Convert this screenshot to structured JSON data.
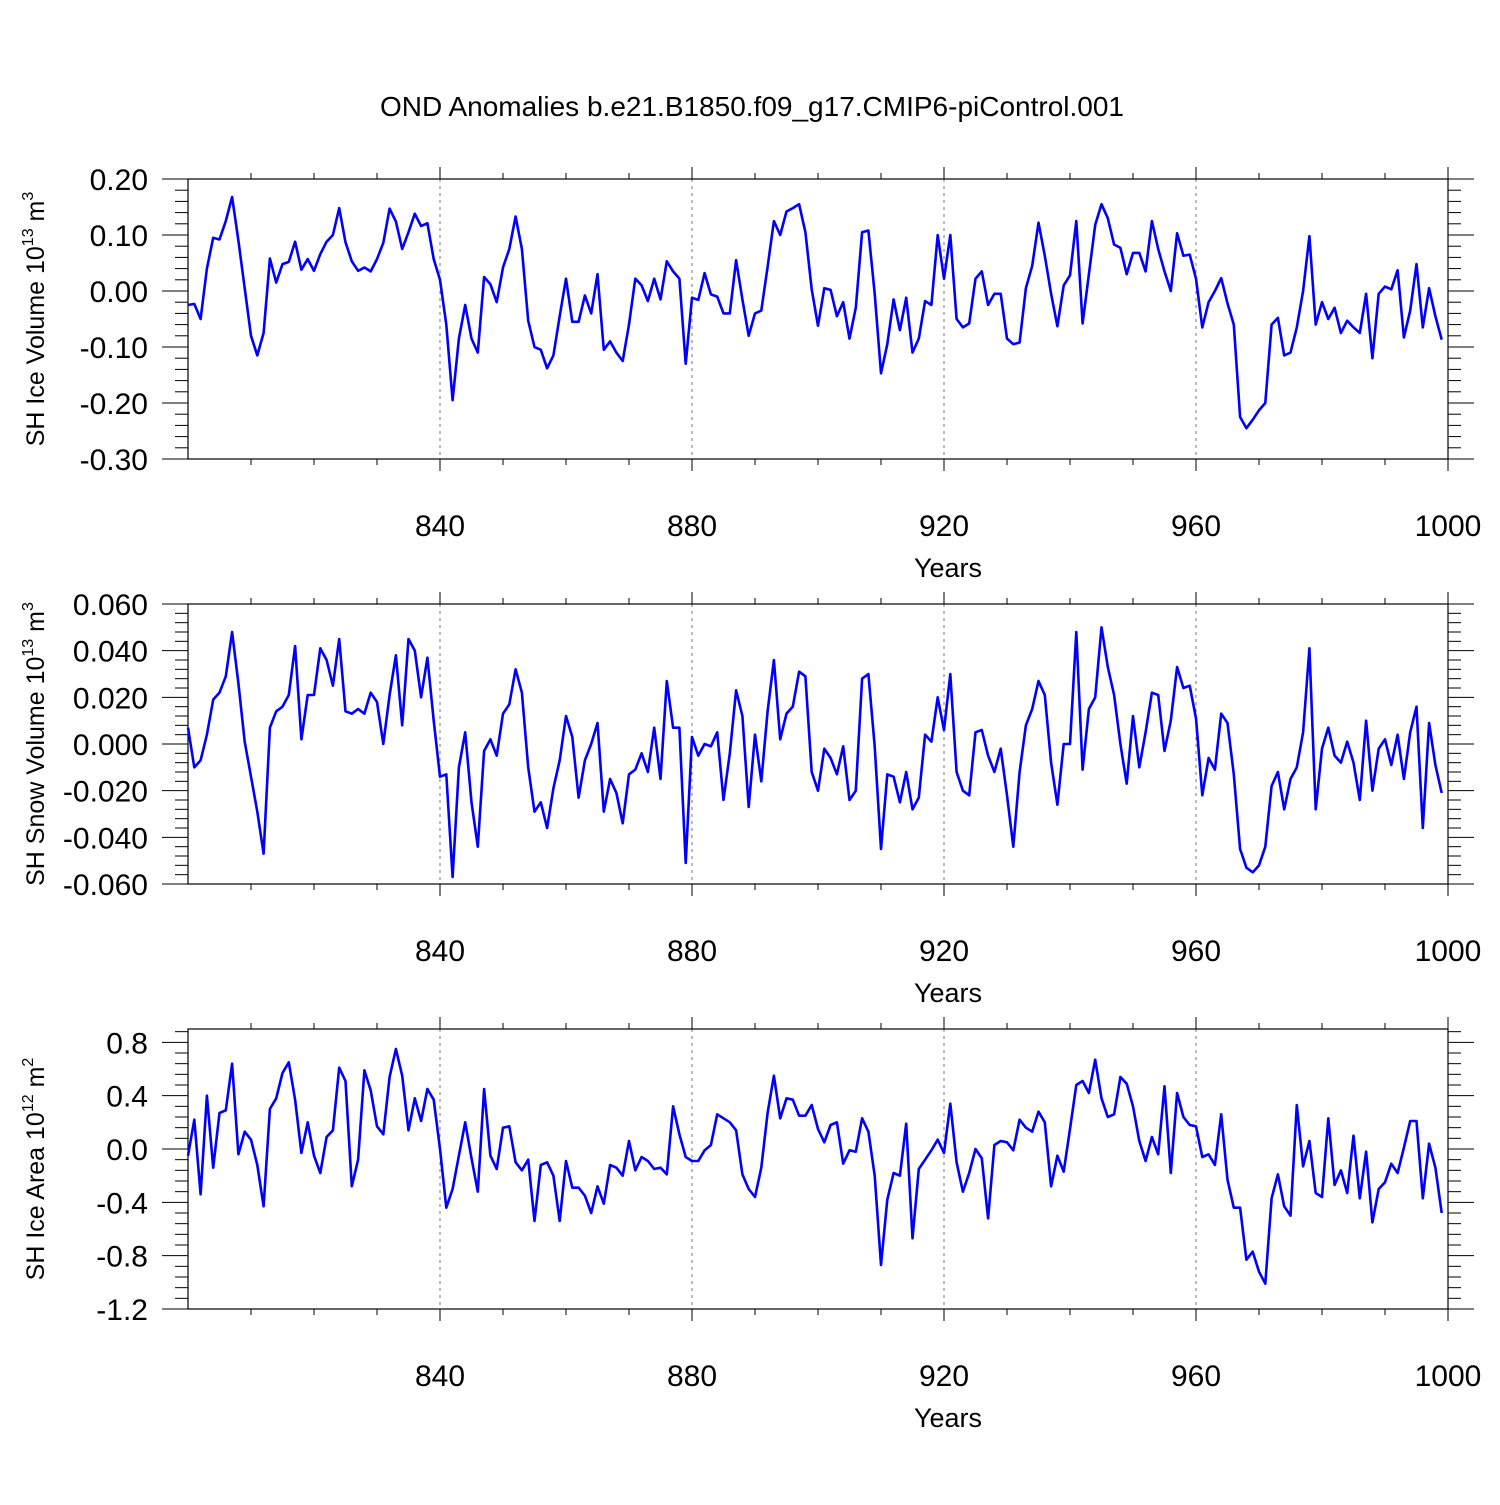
{
  "title": "OND Anomalies b.e21.B1850.f09_g17.CMIP6-piControl.001",
  "series_color": "#0000ff",
  "chart_data": [
    {
      "type": "line",
      "ylabel_main": "SH Ice Volume 10",
      "ylabel_exp": "13",
      "ylabel_unit": " m",
      "ylabel_unit_exp": "3",
      "xlabel": "Years",
      "xlim": [
        800,
        1000
      ],
      "ylim": [
        -0.3,
        0.2
      ],
      "yticks": [
        -0.3,
        -0.2,
        -0.1,
        0.0,
        0.1,
        0.2
      ],
      "ytick_labels": [
        "-0.30",
        "-0.20",
        "-0.10",
        "0.00",
        "0.10",
        "0.20"
      ],
      "xticks": [
        840,
        880,
        920,
        960,
        1000
      ],
      "xtick_labels": [
        "840",
        "880",
        "920",
        "960",
        "1000"
      ],
      "grid": "dashed vertical lines at 840, 880, 920, 960",
      "x_start": 800,
      "values": [
        -0.025,
        -0.023,
        -0.05,
        0.04,
        0.095,
        0.092,
        0.125,
        0.168,
        0.09,
        0.005,
        -0.08,
        -0.115,
        -0.075,
        0.058,
        0.015,
        0.048,
        0.052,
        0.088,
        0.038,
        0.057,
        0.036,
        0.066,
        0.088,
        0.1,
        0.148,
        0.087,
        0.053,
        0.036,
        0.042,
        0.035,
        0.057,
        0.086,
        0.147,
        0.124,
        0.075,
        0.105,
        0.138,
        0.116,
        0.121,
        0.057,
        0.02,
        -0.06,
        -0.195,
        -0.085,
        -0.025,
        -0.085,
        -0.11,
        0.025,
        0.012,
        -0.02,
        0.042,
        0.075,
        0.133,
        0.075,
        -0.053,
        -0.1,
        -0.105,
        -0.138,
        -0.115,
        -0.045,
        0.022,
        -0.055,
        -0.055,
        -0.008,
        -0.04,
        0.03,
        -0.105,
        -0.09,
        -0.11,
        -0.125,
        -0.06,
        0.022,
        0.01,
        -0.018,
        0.022,
        -0.015,
        0.053,
        0.035,
        0.022,
        -0.13,
        -0.012,
        -0.016,
        0.032,
        -0.006,
        -0.01,
        -0.04,
        -0.04,
        0.055,
        -0.015,
        -0.08,
        -0.04,
        -0.035,
        0.043,
        0.125,
        0.1,
        0.142,
        0.148,
        0.155,
        0.105,
        0.003,
        -0.062,
        0.005,
        0.002,
        -0.045,
        -0.02,
        -0.085,
        -0.03,
        0.105,
        0.108,
        -0.005,
        -0.147,
        -0.095,
        -0.015,
        -0.07,
        -0.012,
        -0.11,
        -0.085,
        -0.018,
        -0.025,
        0.1,
        0.022,
        0.1,
        -0.05,
        -0.065,
        -0.058,
        0.022,
        0.035,
        -0.025,
        -0.005,
        -0.005,
        -0.085,
        -0.095,
        -0.092,
        0.005,
        0.045,
        0.122,
        0.063,
        -0.005,
        -0.063,
        0.01,
        0.028,
        0.125,
        -0.058,
        0.03,
        0.118,
        0.155,
        0.13,
        0.083,
        0.077,
        0.03,
        0.068,
        0.068,
        0.035,
        0.125,
        0.075,
        0.035,
        0.0,
        0.103,
        0.063,
        0.065,
        0.022,
        -0.065,
        -0.02,
        0.0,
        0.023,
        -0.022,
        -0.06,
        -0.225,
        -0.245,
        -0.23,
        -0.213,
        -0.2,
        -0.06,
        -0.048,
        -0.115,
        -0.11,
        -0.065,
        0.0,
        0.098,
        -0.06,
        -0.02,
        -0.05,
        -0.03,
        -0.075,
        -0.053,
        -0.065,
        -0.075,
        -0.005,
        -0.12,
        -0.005,
        0.008,
        0.003,
        0.037,
        -0.083,
        -0.035,
        0.048,
        -0.065,
        0.005,
        -0.045,
        -0.087
      ]
    },
    {
      "type": "line",
      "ylabel_main": "SH Snow Volume 10",
      "ylabel_exp": "13",
      "ylabel_unit": " m",
      "ylabel_unit_exp": "3",
      "xlabel": "Years",
      "xlim": [
        800,
        1000
      ],
      "ylim": [
        -0.06,
        0.06
      ],
      "yticks": [
        -0.06,
        -0.04,
        -0.02,
        0.0,
        0.02,
        0.04,
        0.06
      ],
      "ytick_labels": [
        "-0.060",
        "-0.040",
        "-0.020",
        "0.000",
        "0.020",
        "0.040",
        "0.060"
      ],
      "xticks": [
        840,
        880,
        920,
        960,
        1000
      ],
      "xtick_labels": [
        "840",
        "880",
        "920",
        "960",
        "1000"
      ],
      "grid": "dashed vertical lines at 840, 880, 920, 960",
      "x_start": 800,
      "values": [
        0.007,
        -0.01,
        -0.007,
        0.004,
        0.019,
        0.022,
        0.029,
        0.048,
        0.026,
        0.001,
        -0.014,
        -0.029,
        -0.047,
        0.007,
        0.014,
        0.016,
        0.021,
        0.042,
        0.002,
        0.021,
        0.021,
        0.041,
        0.036,
        0.025,
        0.045,
        0.014,
        0.013,
        0.015,
        0.013,
        0.022,
        0.018,
        0.0,
        0.021,
        0.038,
        0.008,
        0.045,
        0.04,
        0.02,
        0.037,
        0.01,
        -0.014,
        -0.013,
        -0.057,
        -0.01,
        0.005,
        -0.025,
        -0.044,
        -0.003,
        0.002,
        -0.005,
        0.013,
        0.017,
        0.032,
        0.022,
        -0.01,
        -0.029,
        -0.025,
        -0.036,
        -0.019,
        -0.007,
        0.012,
        0.003,
        -0.023,
        -0.007,
        0.0,
        0.009,
        -0.029,
        -0.015,
        -0.021,
        -0.034,
        -0.013,
        -0.011,
        -0.004,
        -0.012,
        0.007,
        -0.015,
        0.027,
        0.007,
        0.007,
        -0.051,
        0.003,
        -0.005,
        0.0,
        -0.001,
        0.005,
        -0.024,
        -0.004,
        0.023,
        0.012,
        -0.027,
        0.004,
        -0.016,
        0.014,
        0.036,
        0.002,
        0.013,
        0.016,
        0.031,
        0.029,
        -0.012,
        -0.02,
        -0.002,
        -0.006,
        -0.013,
        -0.001,
        -0.024,
        -0.02,
        0.028,
        0.03,
        -0.001,
        -0.045,
        -0.013,
        -0.014,
        -0.025,
        -0.012,
        -0.028,
        -0.023,
        0.004,
        0.001,
        0.02,
        0.006,
        0.03,
        -0.012,
        -0.02,
        -0.022,
        0.005,
        0.006,
        -0.005,
        -0.012,
        -0.002,
        -0.022,
        -0.044,
        -0.012,
        0.008,
        0.015,
        0.027,
        0.021,
        -0.008,
        -0.026,
        0.0,
        0.0,
        0.048,
        -0.011,
        0.015,
        0.02,
        0.05,
        0.033,
        0.021,
        0.0,
        -0.017,
        0.012,
        -0.01,
        0.005,
        0.022,
        0.021,
        -0.003,
        0.01,
        0.033,
        0.024,
        0.025,
        0.011,
        -0.022,
        -0.006,
        -0.011,
        0.013,
        0.009,
        -0.013,
        -0.045,
        -0.053,
        -0.055,
        -0.052,
        -0.044,
        -0.018,
        -0.012,
        -0.028,
        -0.015,
        -0.01,
        0.005,
        0.041,
        -0.028,
        -0.002,
        0.007,
        -0.005,
        -0.008,
        0.001,
        -0.008,
        -0.024,
        0.01,
        -0.02,
        -0.002,
        0.002,
        -0.009,
        0.004,
        -0.015,
        0.005,
        0.016,
        -0.036,
        0.009,
        -0.009,
        -0.021
      ]
    },
    {
      "type": "line",
      "ylabel_main": "SH Ice Area 10",
      "ylabel_exp": "12",
      "ylabel_unit": " m",
      "ylabel_unit_exp": "2",
      "xlabel": "Years",
      "xlim": [
        800,
        1000
      ],
      "ylim": [
        -1.2,
        0.9
      ],
      "yticks": [
        -1.2,
        -0.8,
        -0.4,
        0.0,
        0.4,
        0.8
      ],
      "ytick_labels": [
        "-1.2",
        "-0.8",
        "-0.4",
        "0.0",
        "0.4",
        "0.8"
      ],
      "xticks": [
        840,
        880,
        920,
        960,
        1000
      ],
      "xtick_labels": [
        "840",
        "880",
        "920",
        "960",
        "1000"
      ],
      "grid": "dashed vertical lines at 840, 880, 920, 960",
      "x_start": 800,
      "values": [
        -0.05,
        0.22,
        -0.34,
        0.4,
        -0.14,
        0.27,
        0.29,
        0.64,
        -0.04,
        0.13,
        0.07,
        -0.12,
        -0.43,
        0.3,
        0.38,
        0.57,
        0.65,
        0.37,
        -0.03,
        0.2,
        -0.05,
        -0.18,
        0.09,
        0.14,
        0.61,
        0.51,
        -0.28,
        -0.08,
        0.59,
        0.44,
        0.17,
        0.11,
        0.54,
        0.75,
        0.55,
        0.14,
        0.38,
        0.21,
        0.45,
        0.37,
        0.0,
        -0.44,
        -0.3,
        -0.05,
        0.2,
        -0.07,
        -0.32,
        0.45,
        -0.05,
        -0.15,
        0.16,
        0.17,
        -0.1,
        -0.16,
        -0.08,
        -0.54,
        -0.12,
        -0.1,
        -0.2,
        -0.54,
        -0.09,
        -0.29,
        -0.29,
        -0.35,
        -0.48,
        -0.28,
        -0.41,
        -0.12,
        -0.14,
        -0.2,
        0.06,
        -0.16,
        -0.06,
        -0.09,
        -0.15,
        -0.14,
        -0.19,
        0.32,
        0.11,
        -0.06,
        -0.09,
        -0.09,
        -0.01,
        0.03,
        0.26,
        0.23,
        0.2,
        0.14,
        -0.19,
        -0.3,
        -0.36,
        -0.14,
        0.27,
        0.55,
        0.23,
        0.38,
        0.37,
        0.25,
        0.25,
        0.33,
        0.15,
        0.05,
        0.18,
        0.2,
        -0.11,
        -0.01,
        -0.02,
        0.23,
        0.13,
        -0.2,
        -0.87,
        -0.38,
        -0.18,
        -0.2,
        0.19,
        -0.67,
        -0.15,
        -0.08,
        -0.01,
        0.07,
        -0.03,
        0.34,
        -0.1,
        -0.32,
        -0.18,
        0.0,
        -0.07,
        -0.52,
        0.03,
        0.06,
        0.05,
        -0.01,
        0.22,
        0.16,
        0.13,
        0.28,
        0.2,
        -0.28,
        -0.05,
        -0.17,
        0.15,
        0.48,
        0.51,
        0.42,
        0.67,
        0.38,
        0.24,
        0.26,
        0.54,
        0.49,
        0.32,
        0.06,
        -0.09,
        0.09,
        -0.04,
        0.47,
        -0.18,
        0.42,
        0.24,
        0.18,
        0.17,
        -0.06,
        -0.04,
        -0.12,
        0.26,
        -0.23,
        -0.44,
        -0.44,
        -0.83,
        -0.77,
        -0.92,
        -1.01,
        -0.37,
        -0.19,
        -0.43,
        -0.5,
        0.33,
        -0.13,
        0.06,
        -0.33,
        -0.36,
        0.23,
        -0.27,
        -0.16,
        -0.33,
        0.1,
        -0.37,
        -0.02,
        -0.55,
        -0.3,
        -0.25,
        -0.11,
        -0.18,
        0.01,
        0.21,
        0.21,
        -0.37,
        0.04,
        -0.14,
        -0.48
      ]
    }
  ]
}
